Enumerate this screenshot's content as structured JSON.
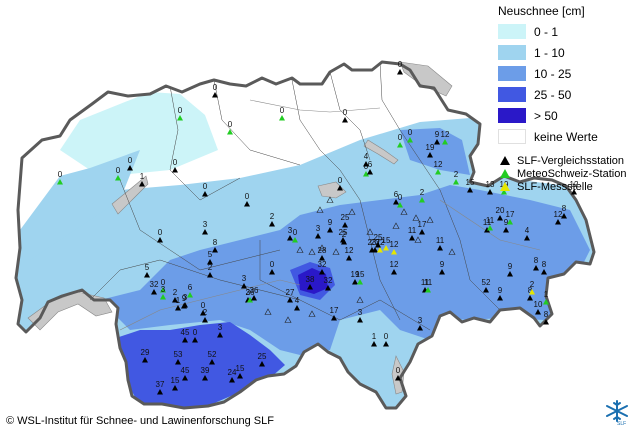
{
  "legend": {
    "title": "Neuschnee [cm]",
    "classes": [
      {
        "label": "0 - 1",
        "color": "#ccf4f8"
      },
      {
        "label": "1 - 10",
        "color": "#9fd4ef"
      },
      {
        "label": "10 - 25",
        "color": "#6c9de8"
      },
      {
        "label": "25 - 50",
        "color": "#4158e2"
      },
      {
        "label": "> 50",
        "color": "#2a18c8"
      },
      {
        "label": "keine Werte",
        "color": "#ffffff"
      }
    ],
    "stations": [
      {
        "label": "SLF-Vergleichsstation",
        "color": "#000000",
        "icon": "triangle-filled"
      },
      {
        "label": "MeteoSchweiz-Station",
        "color": "#22cc22",
        "icon": "triangle-filled"
      },
      {
        "label": "SLF-Messstelle",
        "color": "#e6e600",
        "icon": "triangle-filled"
      }
    ]
  },
  "copyright": "© WSL-Institut für Schnee- und Lawinenforschung SLF",
  "logo_text": "SLF",
  "station_values": [
    "0",
    "0",
    "0",
    "0",
    "0",
    "0",
    "0",
    "0",
    "0",
    "1",
    "0",
    "0",
    "0",
    "0",
    "0",
    "0",
    "0",
    "0",
    "0",
    "9",
    "12",
    "19",
    "12",
    "2",
    "6",
    "0",
    "4",
    "6",
    "2",
    "2",
    "15",
    "13",
    "19",
    "12",
    "3",
    "8",
    "3",
    "5",
    "2",
    "1",
    "0",
    "2",
    "5",
    "6",
    "3",
    "3",
    "2",
    "0",
    "3",
    "3",
    "3",
    "2",
    "25",
    "26",
    "36",
    "27",
    "4",
    "38",
    "32",
    "23",
    "22",
    "32",
    "9",
    "25",
    "28",
    "12",
    "23",
    "25",
    "15",
    "12",
    "17",
    "11",
    "11",
    "11",
    "9",
    "11",
    "19",
    "15",
    "12",
    "3",
    "11",
    "20",
    "9",
    "17",
    "12",
    "8",
    "11",
    "4",
    "52",
    "9",
    "8",
    "8",
    "9",
    "8",
    "2",
    "1",
    "10",
    "8",
    "17",
    "3",
    "1",
    "0",
    "0",
    "9",
    "3",
    "32",
    "0",
    "45",
    "0",
    "29",
    "53",
    "52",
    "45",
    "39",
    "24",
    "37",
    "15",
    "15",
    "25",
    "21"
  ]
}
